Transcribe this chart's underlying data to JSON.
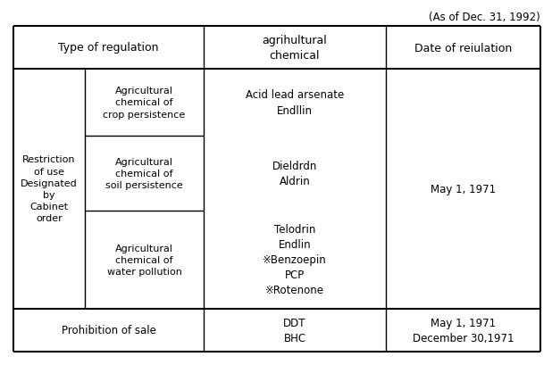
{
  "title_note": "(As of Dec. 31, 1992)",
  "header": [
    "Type of regulation",
    "agrihultural\nchemical",
    "Date of reiulation"
  ],
  "col1_merged": "Restriction\nof use\nDesignated\nby\nCabinet\norder",
  "col1_sub": [
    "Agricultural\nchemical of\ncrop persistence",
    "Agricultural\nchemical of\nsoil persistence",
    "Agricultural\nchemical of\nwater pollution"
  ],
  "col2_data": [
    "Acid lead arsenate\nEndllin",
    "Dieldrdn\nAldrin",
    "Telodrin\nEndlin\n※Benzoepin\nPCP\n※Rotenone"
  ],
  "col3_merged": "May 1, 1971",
  "bottom_col1": "Prohibition of sale",
  "bottom_col2": "DDT\nBHC",
  "bottom_col3": "May 1, 1971\nDecember 30,1971",
  "bg_color": "#ffffff",
  "text_color": "#000000",
  "line_color": "#000000",
  "font_size": 8.5,
  "header_font_size": 9,
  "note_font_size": 8.5,
  "fig_width": 6.18,
  "fig_height": 4.1,
  "dpi": 100
}
